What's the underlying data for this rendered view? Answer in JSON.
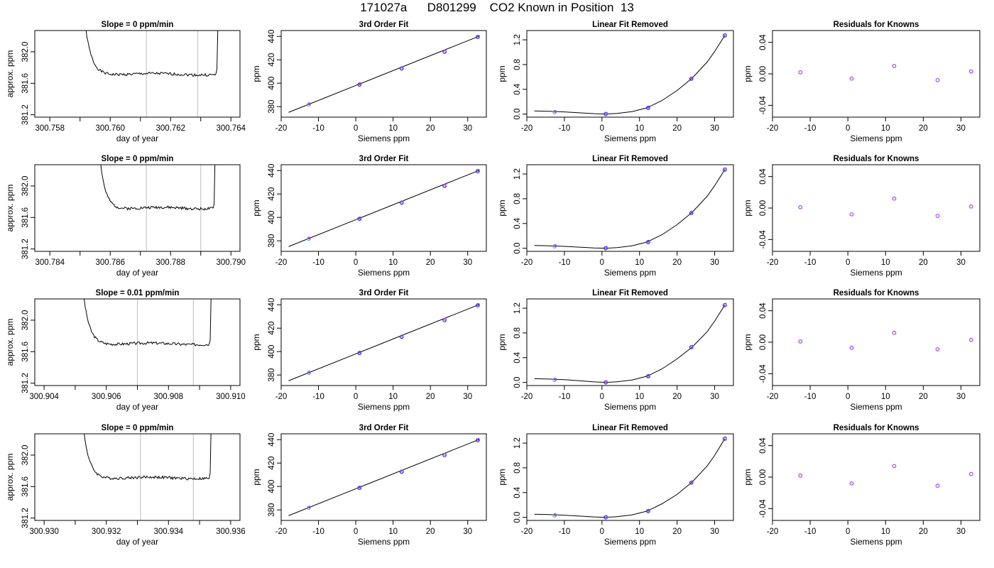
{
  "title": "171027a      D801299    CO2 Known in Position  13",
  "chart_data": [
    {
      "type": "line",
      "row": 0,
      "col": 0,
      "title": "Slope =  0  ppm/min",
      "xlabel": "day of year",
      "ylabel": "approx. ppm",
      "xlim": [
        300.7575,
        300.7643
      ],
      "ylim": [
        381.17,
        382.27
      ],
      "xticks": [
        300.758,
        300.76,
        300.762,
        300.764
      ],
      "xtick_labels": [
        "300.758",
        "300.760",
        "300.762",
        "300.764"
      ],
      "xminor": [
        300.759,
        300.761,
        300.763
      ],
      "yticks": [
        381.2,
        381.6,
        382.0
      ],
      "ytick_labels": [
        "381.2",
        "381.6",
        "382.0"
      ],
      "vlines": [
        300.7612,
        300.7629
      ],
      "trace": {
        "x0": 300.7591,
        "x1": 300.7636,
        "level": 381.715,
        "seed": 1
      }
    },
    {
      "type": "scatter",
      "row": 0,
      "col": 1,
      "title": "3rd Order Fit",
      "xlabel": "Siemens ppm",
      "ylabel": "ppm",
      "xlim": [
        -20,
        35
      ],
      "ylim": [
        371,
        445
      ],
      "xticks": [
        -20,
        -10,
        0,
        10,
        20,
        30
      ],
      "yticks": [
        380,
        400,
        420,
        440
      ],
      "points": [
        {
          "x": -12.6,
          "y": 381.7
        },
        {
          "x": 1.0,
          "y": 398.8
        },
        {
          "x": 12.3,
          "y": 412.6
        },
        {
          "x": 23.8,
          "y": 426.8
        },
        {
          "x": 32.7,
          "y": 439.5
        }
      ],
      "fit_line": [
        [
          -18,
          375.1
        ],
        [
          33,
          440.1
        ]
      ]
    },
    {
      "type": "scatter",
      "row": 0,
      "col": 2,
      "title": "Linear Fit Removed",
      "xlabel": "Siemens ppm",
      "ylabel": "ppm",
      "xlim": [
        -20,
        35
      ],
      "ylim": [
        -0.05,
        1.35
      ],
      "xticks": [
        -20,
        -10,
        0,
        10,
        20,
        30
      ],
      "yticks": [
        0.0,
        0.4,
        0.8,
        1.2
      ],
      "ytick_labels": [
        "0.0",
        "0.4",
        "0.8",
        "1.2"
      ],
      "points": [
        {
          "x": -12.6,
          "y": 0.03
        },
        {
          "x": 1.0,
          "y": 0.0
        },
        {
          "x": 12.3,
          "y": 0.1
        },
        {
          "x": 23.8,
          "y": 0.57
        },
        {
          "x": 32.7,
          "y": 1.27
        }
      ],
      "curve": [
        [
          -18,
          0.05
        ],
        [
          -14,
          0.045
        ],
        [
          -10,
          0.035
        ],
        [
          -6,
          0.02
        ],
        [
          -2,
          0.006
        ],
        [
          1,
          0.0
        ],
        [
          4,
          0.01
        ],
        [
          8,
          0.04
        ],
        [
          12,
          0.1
        ],
        [
          16,
          0.22
        ],
        [
          20,
          0.38
        ],
        [
          24,
          0.58
        ],
        [
          28,
          0.84
        ],
        [
          30,
          1.01
        ],
        [
          32.7,
          1.27
        ]
      ]
    },
    {
      "type": "scatter",
      "row": 0,
      "col": 3,
      "title": "Residuals for Knowns",
      "xlabel": "Siemens ppm",
      "ylabel": "ppm",
      "xlim": [
        -20,
        35
      ],
      "ylim": [
        -0.055,
        0.055
      ],
      "xticks": [
        -20,
        -10,
        0,
        10,
        20,
        30
      ],
      "yticks": [
        -0.04,
        0.0,
        0.04
      ],
      "ytick_labels": [
        "-0.04",
        "0.00",
        "0.04"
      ],
      "points": [
        {
          "x": -12.6,
          "y": 0.002
        },
        {
          "x": 1.0,
          "y": -0.006
        },
        {
          "x": 12.3,
          "y": 0.01
        },
        {
          "x": 23.8,
          "y": -0.008
        },
        {
          "x": 32.7,
          "y": 0.003
        }
      ]
    },
    {
      "type": "line",
      "row": 1,
      "col": 0,
      "title": "Slope =  0  ppm/min",
      "xlabel": "day of year",
      "ylabel": "approx. ppm",
      "xlim": [
        300.7835,
        300.7903
      ],
      "ylim": [
        381.17,
        382.27
      ],
      "xticks": [
        300.784,
        300.786,
        300.788,
        300.79
      ],
      "xtick_labels": [
        "300.784",
        "300.786",
        "300.788",
        "300.790"
      ],
      "xminor": [
        300.785,
        300.787,
        300.789
      ],
      "yticks": [
        381.2,
        381.6,
        382.0
      ],
      "ytick_labels": [
        "381.2",
        "381.6",
        "382.0"
      ],
      "vlines": [
        300.7872,
        300.789
      ],
      "trace": {
        "x0": 300.7856,
        "x1": 300.7895,
        "level": 381.72,
        "seed": 2
      }
    },
    {
      "type": "scatter",
      "row": 1,
      "col": 1,
      "title": "3rd Order Fit",
      "xlabel": "Siemens ppm",
      "ylabel": "ppm",
      "xlim": [
        -20,
        35
      ],
      "ylim": [
        371,
        445
      ],
      "xticks": [
        -20,
        -10,
        0,
        10,
        20,
        30
      ],
      "yticks": [
        380,
        400,
        420,
        440
      ],
      "points": [
        {
          "x": -12.6,
          "y": 381.7
        },
        {
          "x": 1.0,
          "y": 398.8
        },
        {
          "x": 12.3,
          "y": 412.6
        },
        {
          "x": 23.8,
          "y": 426.8
        },
        {
          "x": 32.7,
          "y": 439.5
        }
      ],
      "fit_line": [
        [
          -18,
          375.1
        ],
        [
          33,
          440.1
        ]
      ]
    },
    {
      "type": "scatter",
      "row": 1,
      "col": 2,
      "title": "Linear Fit Removed",
      "xlabel": "Siemens ppm",
      "ylabel": "ppm",
      "xlim": [
        -20,
        35
      ],
      "ylim": [
        -0.05,
        1.35
      ],
      "xticks": [
        -20,
        -10,
        0,
        10,
        20,
        30
      ],
      "yticks": [
        0.0,
        0.4,
        0.8,
        1.2
      ],
      "ytick_labels": [
        "0.0",
        "0.4",
        "0.8",
        "1.2"
      ],
      "points": [
        {
          "x": -12.6,
          "y": 0.03
        },
        {
          "x": 1.0,
          "y": 0.0
        },
        {
          "x": 12.3,
          "y": 0.1
        },
        {
          "x": 23.8,
          "y": 0.57
        },
        {
          "x": 32.7,
          "y": 1.27
        }
      ],
      "curve": [
        [
          -18,
          0.045
        ],
        [
          -14,
          0.04
        ],
        [
          -10,
          0.03
        ],
        [
          -6,
          0.018
        ],
        [
          -2,
          0.005
        ],
        [
          1,
          0.0
        ],
        [
          4,
          0.01
        ],
        [
          8,
          0.04
        ],
        [
          12,
          0.1
        ],
        [
          16,
          0.22
        ],
        [
          20,
          0.38
        ],
        [
          24,
          0.58
        ],
        [
          28,
          0.84
        ],
        [
          30,
          1.01
        ],
        [
          32.7,
          1.27
        ]
      ]
    },
    {
      "type": "scatter",
      "row": 1,
      "col": 3,
      "title": "Residuals for Knowns",
      "xlabel": "Siemens ppm",
      "ylabel": "ppm",
      "xlim": [
        -20,
        35
      ],
      "ylim": [
        -0.055,
        0.055
      ],
      "xticks": [
        -20,
        -10,
        0,
        10,
        20,
        30
      ],
      "yticks": [
        -0.04,
        0.0,
        0.04
      ],
      "ytick_labels": [
        "-0.04",
        "0.00",
        "0.04"
      ],
      "points": [
        {
          "x": -12.6,
          "y": 0.001
        },
        {
          "x": 1.0,
          "y": -0.008
        },
        {
          "x": 12.3,
          "y": 0.012
        },
        {
          "x": 23.8,
          "y": -0.01
        },
        {
          "x": 32.7,
          "y": 0.002
        }
      ]
    },
    {
      "type": "line",
      "row": 2,
      "col": 0,
      "title": "Slope =  0.01  ppm/min",
      "xlabel": "day of year",
      "ylabel": "approx. ppm",
      "xlim": [
        300.9037,
        300.9103
      ],
      "ylim": [
        381.17,
        382.27
      ],
      "xticks": [
        300.904,
        300.906,
        300.908,
        300.91
      ],
      "xtick_labels": [
        "300.904",
        "300.906",
        "300.908",
        "300.910"
      ],
      "xminor": [
        300.905,
        300.907,
        300.909
      ],
      "yticks": [
        381.2,
        381.6,
        382.0
      ],
      "ytick_labels": [
        "381.2",
        "381.6",
        "382.0"
      ],
      "vlines": [
        300.907,
        300.9088
      ],
      "trace": {
        "x0": 300.9052,
        "x1": 300.9094,
        "level": 381.7,
        "seed": 3
      }
    },
    {
      "type": "scatter",
      "row": 2,
      "col": 1,
      "title": "3rd Order Fit",
      "xlabel": "Siemens ppm",
      "ylabel": "ppm",
      "xlim": [
        -20,
        35
      ],
      "ylim": [
        371,
        445
      ],
      "xticks": [
        -20,
        -10,
        0,
        10,
        20,
        30
      ],
      "yticks": [
        380,
        400,
        420,
        440
      ],
      "points": [
        {
          "x": -12.6,
          "y": 381.7
        },
        {
          "x": 1.0,
          "y": 398.8
        },
        {
          "x": 12.3,
          "y": 412.6
        },
        {
          "x": 23.8,
          "y": 426.8
        },
        {
          "x": 32.7,
          "y": 439.5
        }
      ],
      "fit_line": [
        [
          -18,
          375.1
        ],
        [
          33,
          440.1
        ]
      ]
    },
    {
      "type": "scatter",
      "row": 2,
      "col": 2,
      "title": "Linear Fit Removed",
      "xlabel": "Siemens ppm",
      "ylabel": "ppm",
      "xlim": [
        -20,
        35
      ],
      "ylim": [
        -0.05,
        1.35
      ],
      "xticks": [
        -20,
        -10,
        0,
        10,
        20,
        30
      ],
      "yticks": [
        0.0,
        0.4,
        0.8,
        1.2
      ],
      "ytick_labels": [
        "0.0",
        "0.4",
        "0.8",
        "1.2"
      ],
      "points": [
        {
          "x": -12.6,
          "y": 0.04
        },
        {
          "x": 1.0,
          "y": 0.0
        },
        {
          "x": 12.3,
          "y": 0.1
        },
        {
          "x": 23.8,
          "y": 0.57
        },
        {
          "x": 32.7,
          "y": 1.25
        }
      ],
      "curve": [
        [
          -18,
          0.06
        ],
        [
          -14,
          0.055
        ],
        [
          -10,
          0.045
        ],
        [
          -6,
          0.028
        ],
        [
          -2,
          0.008
        ],
        [
          1,
          0.0
        ],
        [
          4,
          0.01
        ],
        [
          8,
          0.04
        ],
        [
          12,
          0.1
        ],
        [
          16,
          0.22
        ],
        [
          20,
          0.38
        ],
        [
          24,
          0.57
        ],
        [
          28,
          0.82
        ],
        [
          30,
          0.99
        ],
        [
          32.7,
          1.25
        ]
      ]
    },
    {
      "type": "scatter",
      "row": 2,
      "col": 3,
      "title": "Residuals for Knowns",
      "xlabel": "Siemens ppm",
      "ylabel": "ppm",
      "xlim": [
        -20,
        35
      ],
      "ylim": [
        -0.055,
        0.055
      ],
      "xticks": [
        -20,
        -10,
        0,
        10,
        20,
        30
      ],
      "yticks": [
        -0.04,
        0.0,
        0.04
      ],
      "ytick_labels": [
        "-0.04",
        "0.00",
        "0.04"
      ],
      "points": [
        {
          "x": -12.6,
          "y": 0.001
        },
        {
          "x": 1.0,
          "y": -0.007
        },
        {
          "x": 12.3,
          "y": 0.012
        },
        {
          "x": 23.8,
          "y": -0.009
        },
        {
          "x": 32.7,
          "y": 0.003
        }
      ]
    },
    {
      "type": "line",
      "row": 3,
      "col": 0,
      "title": "Slope =  0  ppm/min",
      "xlabel": "day of year",
      "ylabel": "approx. ppm",
      "xlim": [
        300.9297,
        300.9363
      ],
      "ylim": [
        381.17,
        382.27
      ],
      "xticks": [
        300.93,
        300.932,
        300.934,
        300.936
      ],
      "xtick_labels": [
        "300.930",
        "300.932",
        "300.934",
        "300.936"
      ],
      "xminor": [
        300.931,
        300.933,
        300.935
      ],
      "yticks": [
        381.2,
        381.6,
        382.0
      ],
      "ytick_labels": [
        "381.2",
        "381.6",
        "382.0"
      ],
      "vlines": [
        300.9331,
        300.9348
      ],
      "trace": {
        "x0": 300.9312,
        "x1": 300.9354,
        "level": 381.71,
        "seed": 4
      }
    },
    {
      "type": "scatter",
      "row": 3,
      "col": 1,
      "title": "3rd Order Fit",
      "xlabel": "Siemens ppm",
      "ylabel": "ppm",
      "xlim": [
        -20,
        35
      ],
      "ylim": [
        371,
        445
      ],
      "xticks": [
        -20,
        -10,
        0,
        10,
        20,
        30
      ],
      "yticks": [
        380,
        400,
        420,
        440
      ],
      "points": [
        {
          "x": -12.6,
          "y": 381.7
        },
        {
          "x": 1.0,
          "y": 398.8
        },
        {
          "x": 12.3,
          "y": 412.6
        },
        {
          "x": 23.8,
          "y": 426.8
        },
        {
          "x": 32.7,
          "y": 439.5
        }
      ],
      "fit_line": [
        [
          -18,
          375.1
        ],
        [
          33,
          440.1
        ]
      ]
    },
    {
      "type": "scatter",
      "row": 3,
      "col": 2,
      "title": "Linear Fit Removed",
      "xlabel": "Siemens ppm",
      "ylabel": "ppm",
      "xlim": [
        -20,
        35
      ],
      "ylim": [
        -0.05,
        1.35
      ],
      "xticks": [
        -20,
        -10,
        0,
        10,
        20,
        30
      ],
      "yticks": [
        0.0,
        0.4,
        0.8,
        1.2
      ],
      "ytick_labels": [
        "0.0",
        "0.4",
        "0.8",
        "1.2"
      ],
      "points": [
        {
          "x": -12.6,
          "y": 0.03
        },
        {
          "x": 1.0,
          "y": 0.0
        },
        {
          "x": 12.3,
          "y": 0.1
        },
        {
          "x": 23.8,
          "y": 0.56
        },
        {
          "x": 32.7,
          "y": 1.27
        }
      ],
      "curve": [
        [
          -18,
          0.05
        ],
        [
          -14,
          0.045
        ],
        [
          -10,
          0.035
        ],
        [
          -6,
          0.02
        ],
        [
          -2,
          0.006
        ],
        [
          1,
          0.0
        ],
        [
          4,
          0.01
        ],
        [
          8,
          0.04
        ],
        [
          12,
          0.1
        ],
        [
          16,
          0.22
        ],
        [
          20,
          0.37
        ],
        [
          24,
          0.57
        ],
        [
          28,
          0.83
        ],
        [
          30,
          1.0
        ],
        [
          32.7,
          1.27
        ]
      ]
    },
    {
      "type": "scatter",
      "row": 3,
      "col": 3,
      "title": "Residuals for Knowns",
      "xlabel": "Siemens ppm",
      "ylabel": "ppm",
      "xlim": [
        -20,
        35
      ],
      "ylim": [
        -0.055,
        0.055
      ],
      "xticks": [
        -20,
        -10,
        0,
        10,
        20,
        30
      ],
      "yticks": [
        -0.04,
        0.0,
        0.04
      ],
      "ytick_labels": [
        "-0.04",
        "0.00",
        "0.04"
      ],
      "points": [
        {
          "x": -12.6,
          "y": 0.002
        },
        {
          "x": 1.0,
          "y": -0.008
        },
        {
          "x": 12.3,
          "y": 0.014
        },
        {
          "x": 23.8,
          "y": -0.011
        },
        {
          "x": 32.7,
          "y": 0.004
        }
      ]
    }
  ],
  "colors": {
    "axes": "#000000",
    "trace": "#000000",
    "vline": "#c8c8c8",
    "point": "#2b2bd6",
    "point_alt": "#a349e8",
    "point_light": "#5aa8e6"
  }
}
